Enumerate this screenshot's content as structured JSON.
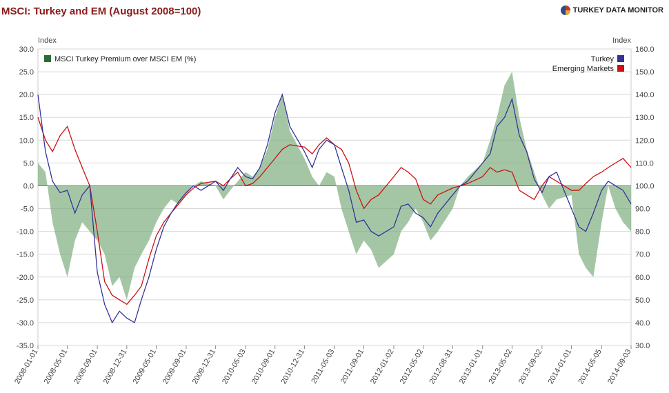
{
  "header": {
    "title": "MSCI: Turkey and EM (August 2008=100)",
    "brand": "TURKEY DATA MONITOR",
    "brand_icon": "pie-logo-icon"
  },
  "chart_data": {
    "type": "line",
    "title": "MSCI: Turkey and EM (August 2008=100)",
    "left_axis": {
      "label": "Index",
      "range": [
        -35,
        30
      ],
      "ticks": [
        "30.0",
        "25.0",
        "20.0",
        "15.0",
        "10.0",
        "5.0",
        "0.0",
        "-5.0",
        "-10.0",
        "-15.0",
        "-20.0",
        "-25.0",
        "-30.0",
        "-35.0"
      ]
    },
    "right_axis": {
      "label": "Index",
      "range": [
        30,
        160
      ],
      "ticks": [
        "160.0",
        "150.0",
        "140.0",
        "130.0",
        "120.0",
        "110.0",
        "100.0",
        "90.0",
        "80.0",
        "70.0",
        "60.0",
        "50.0",
        "40.0",
        "30.0"
      ]
    },
    "x_range": [
      "2008-01-01",
      "2014-09-03"
    ],
    "x_ticks": [
      "2008-01-01",
      "2008-05-01",
      "2008-09-01",
      "2008-12-31",
      "2009-05-01",
      "2009-09-01",
      "2009-12-31",
      "2010-05-03",
      "2010-09-01",
      "2010-12-31",
      "2011-05-03",
      "2011-09-01",
      "2012-01-02",
      "2012-05-02",
      "2012-08-31",
      "2013-01-01",
      "2013-05-02",
      "2013-09-02",
      "2014-01-01",
      "2014-05-05",
      "2014-09-03"
    ],
    "grid": true,
    "legend_placement": "top-left and top-right",
    "series": [
      {
        "name": "MSCI Turkey Premium over MSCI EM (%)",
        "axis": "left",
        "style": "area",
        "color": "#4a8a4a",
        "x": [
          "2008-01-01",
          "2008-02-01",
          "2008-03-01",
          "2008-04-01",
          "2008-05-01",
          "2008-06-01",
          "2008-07-01",
          "2008-08-01",
          "2008-09-01",
          "2008-10-01",
          "2008-11-01",
          "2008-12-01",
          "2008-12-31",
          "2009-02-01",
          "2009-03-01",
          "2009-04-01",
          "2009-05-01",
          "2009-06-01",
          "2009-07-01",
          "2009-08-01",
          "2009-09-01",
          "2009-10-01",
          "2009-11-01",
          "2009-12-31",
          "2010-02-01",
          "2010-03-01",
          "2010-04-01",
          "2010-05-03",
          "2010-06-01",
          "2010-07-01",
          "2010-08-01",
          "2010-09-01",
          "2010-10-01",
          "2010-11-01",
          "2010-12-31",
          "2011-02-01",
          "2011-03-01",
          "2011-04-01",
          "2011-05-03",
          "2011-06-01",
          "2011-07-01",
          "2011-08-01",
          "2011-09-01",
          "2011-10-01",
          "2011-11-01",
          "2012-01-02",
          "2012-02-01",
          "2012-03-01",
          "2012-04-01",
          "2012-05-02",
          "2012-06-01",
          "2012-07-01",
          "2012-08-31",
          "2012-10-01",
          "2012-11-01",
          "2013-01-01",
          "2013-02-01",
          "2013-03-01",
          "2013-04-01",
          "2013-05-02",
          "2013-06-01",
          "2013-07-01",
          "2013-08-01",
          "2013-09-02",
          "2013-10-01",
          "2013-11-01",
          "2014-01-01",
          "2014-02-01",
          "2014-03-01",
          "2014-04-01",
          "2014-05-05",
          "2014-06-01",
          "2014-07-01",
          "2014-08-01",
          "2014-09-03"
        ],
        "values": [
          5,
          3,
          -8,
          -15,
          -20,
          -12,
          -8,
          -10,
          -12,
          -15,
          -22,
          -20,
          -25,
          -18,
          -15,
          -12,
          -8,
          -5,
          -3,
          -4,
          -2,
          0,
          1,
          0,
          -3,
          -1,
          1,
          3,
          2,
          4,
          8,
          15,
          20,
          12,
          6,
          2,
          0,
          3,
          2,
          -5,
          -10,
          -15,
          -12,
          -14,
          -18,
          -15,
          -10,
          -8,
          -5,
          -8,
          -12,
          -10,
          -5,
          0,
          2,
          5,
          10,
          15,
          22,
          25,
          15,
          8,
          3,
          -2,
          -5,
          -3,
          -2,
          -15,
          -18,
          -20,
          -8,
          0,
          -5,
          -8,
          -10
        ]
      },
      {
        "name": "Turkey",
        "axis": "right",
        "style": "line",
        "color": "#333399",
        "x": [
          "2008-01-01",
          "2008-02-01",
          "2008-03-01",
          "2008-04-01",
          "2008-05-01",
          "2008-06-01",
          "2008-07-01",
          "2008-08-01",
          "2008-09-01",
          "2008-10-01",
          "2008-11-01",
          "2008-12-01",
          "2008-12-31",
          "2009-02-01",
          "2009-03-01",
          "2009-04-01",
          "2009-05-01",
          "2009-06-01",
          "2009-07-01",
          "2009-08-01",
          "2009-09-01",
          "2009-10-01",
          "2009-11-01",
          "2009-12-31",
          "2010-02-01",
          "2010-03-01",
          "2010-04-01",
          "2010-05-03",
          "2010-06-01",
          "2010-07-01",
          "2010-08-01",
          "2010-09-01",
          "2010-10-01",
          "2010-11-01",
          "2010-12-31",
          "2011-02-01",
          "2011-03-01",
          "2011-04-01",
          "2011-05-03",
          "2011-06-01",
          "2011-07-01",
          "2011-08-01",
          "2011-09-01",
          "2011-10-01",
          "2011-11-01",
          "2012-01-02",
          "2012-02-01",
          "2012-03-01",
          "2012-04-01",
          "2012-05-02",
          "2012-06-01",
          "2012-07-01",
          "2012-08-31",
          "2012-10-01",
          "2012-11-01",
          "2013-01-01",
          "2013-02-01",
          "2013-03-01",
          "2013-04-01",
          "2013-05-02",
          "2013-06-01",
          "2013-07-01",
          "2013-08-01",
          "2013-09-02",
          "2013-10-01",
          "2013-11-01",
          "2014-01-01",
          "2014-02-01",
          "2014-03-01",
          "2014-04-01",
          "2014-05-05",
          "2014-06-01",
          "2014-07-01",
          "2014-08-01",
          "2014-09-03"
        ],
        "values": [
          140,
          115,
          102,
          97,
          98,
          88,
          96,
          100,
          62,
          48,
          40,
          45,
          42,
          40,
          50,
          60,
          72,
          82,
          88,
          93,
          97,
          100,
          98,
          102,
          98,
          103,
          108,
          104,
          103,
          108,
          118,
          132,
          140,
          126,
          115,
          108,
          116,
          120,
          118,
          108,
          98,
          84,
          85,
          80,
          78,
          82,
          91,
          92,
          88,
          86,
          82,
          88,
          96,
          100,
          102,
          110,
          114,
          126,
          130,
          138,
          122,
          115,
          103,
          97,
          104,
          106,
          90,
          82,
          80,
          88,
          98,
          102,
          100,
          98,
          92
        ]
      },
      {
        "name": "Emerging Markets",
        "axis": "right",
        "style": "line",
        "color": "#cc1111",
        "x": [
          "2008-01-01",
          "2008-02-01",
          "2008-03-01",
          "2008-04-01",
          "2008-05-01",
          "2008-06-01",
          "2008-07-01",
          "2008-08-01",
          "2008-09-01",
          "2008-10-01",
          "2008-11-01",
          "2008-12-01",
          "2008-12-31",
          "2009-02-01",
          "2009-03-01",
          "2009-04-01",
          "2009-05-01",
          "2009-06-01",
          "2009-07-01",
          "2009-08-01",
          "2009-09-01",
          "2009-10-01",
          "2009-11-01",
          "2009-12-31",
          "2010-02-01",
          "2010-03-01",
          "2010-04-01",
          "2010-05-03",
          "2010-06-01",
          "2010-07-01",
          "2010-08-01",
          "2010-09-01",
          "2010-10-01",
          "2010-11-01",
          "2010-12-31",
          "2011-02-01",
          "2011-03-01",
          "2011-04-01",
          "2011-05-03",
          "2011-06-01",
          "2011-07-01",
          "2011-08-01",
          "2011-09-01",
          "2011-10-01",
          "2011-11-01",
          "2012-01-02",
          "2012-02-01",
          "2012-03-01",
          "2012-04-01",
          "2012-05-02",
          "2012-06-01",
          "2012-07-01",
          "2012-08-31",
          "2012-10-01",
          "2012-11-01",
          "2013-01-01",
          "2013-02-01",
          "2013-03-01",
          "2013-04-01",
          "2013-05-02",
          "2013-06-01",
          "2013-07-01",
          "2013-08-01",
          "2013-09-02",
          "2013-10-01",
          "2013-11-01",
          "2014-01-01",
          "2014-02-01",
          "2014-03-01",
          "2014-04-01",
          "2014-05-05",
          "2014-06-01",
          "2014-07-01",
          "2014-08-01",
          "2014-09-03"
        ],
        "values": [
          130,
          120,
          115,
          122,
          126,
          116,
          108,
          100,
          80,
          58,
          52,
          50,
          48,
          52,
          56,
          68,
          78,
          84,
          88,
          92,
          96,
          99,
          101,
          102,
          100,
          103,
          106,
          100,
          101,
          104,
          108,
          112,
          116,
          118,
          117,
          114,
          118,
          121,
          118,
          116,
          110,
          98,
          90,
          94,
          96,
          104,
          108,
          106,
          103,
          94,
          92,
          96,
          99,
          100,
          101,
          104,
          108,
          106,
          107,
          106,
          98,
          96,
          94,
          100,
          104,
          102,
          98,
          98,
          101,
          104,
          106,
          108,
          110,
          112,
          108
        ]
      }
    ]
  }
}
